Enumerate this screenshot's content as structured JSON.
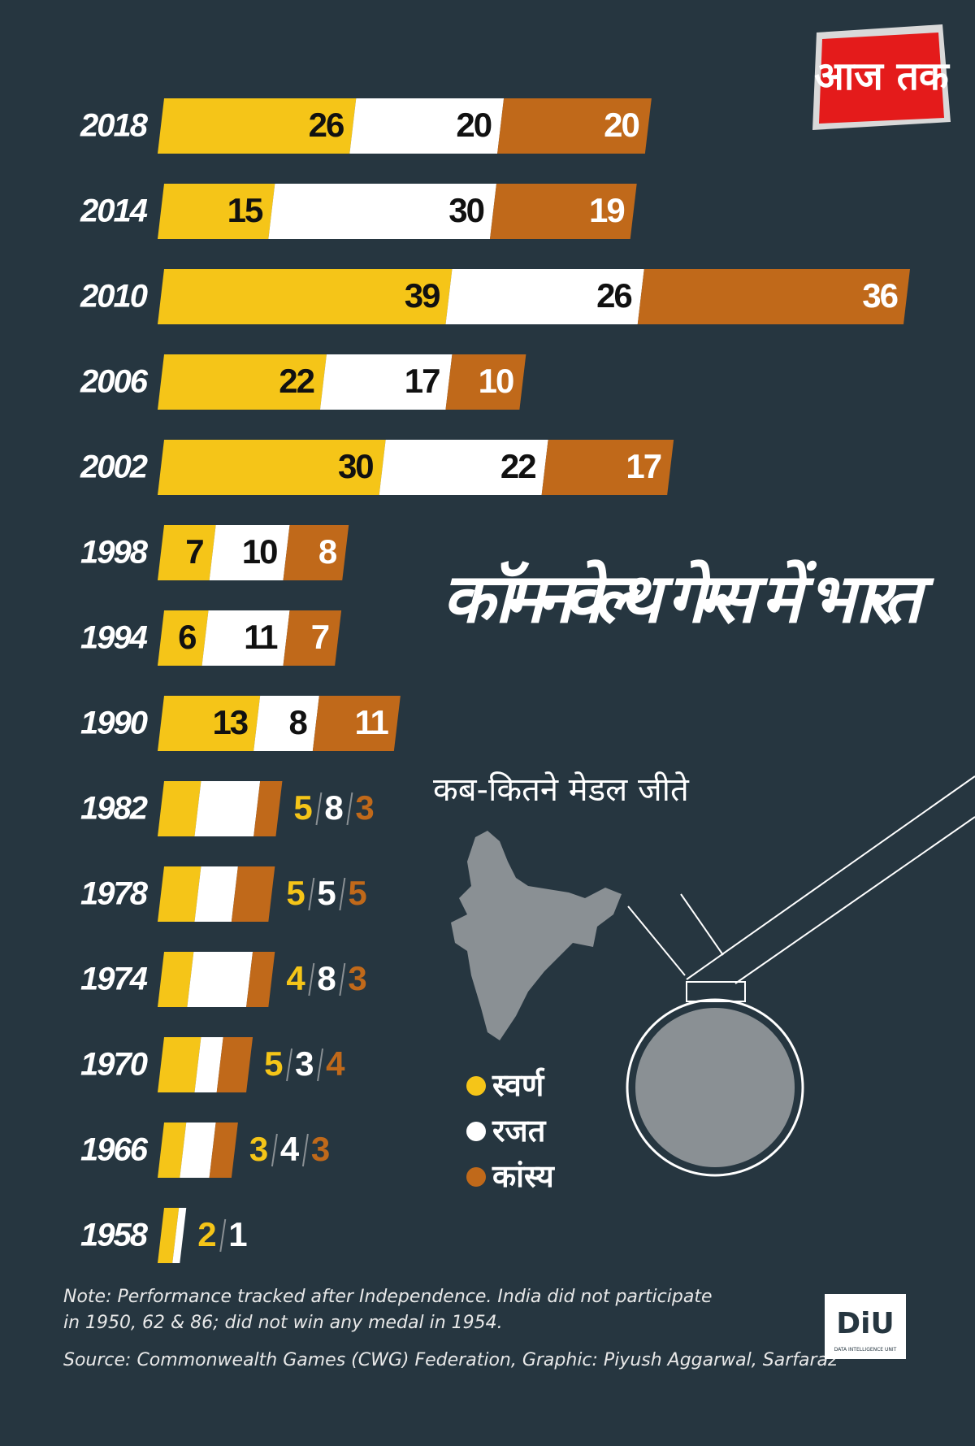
{
  "chart_data": {
    "type": "bar",
    "orientation": "horizontal",
    "stacked": true,
    "title": "कॉमनवेल्थ गेम्स में भारत",
    "subtitle": "कब-कितने मेडल जीते",
    "categories": [
      "2018",
      "2014",
      "2010",
      "2006",
      "2002",
      "1998",
      "1994",
      "1990",
      "1982",
      "1978",
      "1974",
      "1970",
      "1966",
      "1958"
    ],
    "series": [
      {
        "name": "स्वर्ण",
        "color": "#f5c518",
        "values": [
          26,
          15,
          39,
          22,
          30,
          7,
          6,
          13,
          5,
          5,
          4,
          5,
          3,
          2
        ]
      },
      {
        "name": "रजत",
        "color": "#ffffff",
        "values": [
          20,
          30,
          26,
          17,
          22,
          10,
          11,
          8,
          8,
          5,
          8,
          3,
          4,
          1
        ]
      },
      {
        "name": "कांस्य",
        "color": "#c0691a",
        "values": [
          20,
          19,
          36,
          10,
          17,
          8,
          7,
          11,
          3,
          5,
          3,
          4,
          3,
          null
        ]
      }
    ],
    "note": [
      "Note: Performance tracked after Independence. India did not participate",
      "in 1950, 62 & 86; did not win any medal in 1954."
    ],
    "source": "Source: Commonwealth Games (CWG) Federation, Graphic: Piyush Aggarwal, Sarfaraz",
    "brand": "आज तक",
    "badge": "DiU",
    "badge_sub": "DATA INTELLIGENCE UNIT"
  }
}
